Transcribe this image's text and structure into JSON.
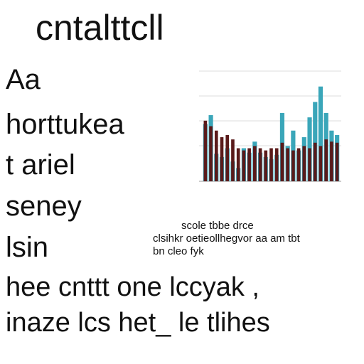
{
  "header": {
    "title": "cntalttcll"
  },
  "lines": [
    "Aa",
    "horttukea",
    "t ariel",
    "seney",
    "lsin"
  ],
  "caption": [
    "scole tbbe drce",
    "clsihkr oetieollhegvor aa am tbt",
    "bn cleo fyk"
  ],
  "footer": [
    "hee cnttt one lccyak ,",
    "inaze lcs het_ le tlihes"
  ],
  "figure": {
    "type": "bar",
    "ylim": [
      0,
      100
    ],
    "series": [
      {
        "color": "#3aa6b9",
        "values": [
          52,
          60,
          25,
          22,
          30,
          18,
          12,
          30,
          26,
          36,
          26,
          22,
          20,
          24,
          62,
          32,
          46,
          28,
          40,
          58,
          72,
          86,
          62,
          46,
          42
        ]
      },
      {
        "color": "#5a1a1a",
        "values": [
          55,
          50,
          46,
          40,
          42,
          38,
          30,
          28,
          30,
          32,
          30,
          28,
          30,
          30,
          35,
          30,
          28,
          30,
          32,
          30,
          35,
          32,
          38,
          36,
          35
        ]
      }
    ]
  }
}
